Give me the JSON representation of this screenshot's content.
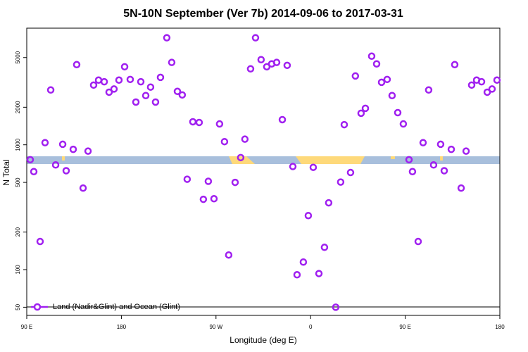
{
  "chart_data": {
    "type": "scatter",
    "title": "5N-10N September (Ver 7b)   2014-09-06 to 2017-03-31",
    "x_label": "Longitude (deg E)",
    "y_label": "N Total",
    "xlim": [
      90,
      540
    ],
    "xticks": [
      {
        "value": 90,
        "label": "90 E"
      },
      {
        "value": 180,
        "label": "180"
      },
      {
        "value": 270,
        "label": "90 W"
      },
      {
        "value": 360,
        "label": "0"
      },
      {
        "value": 450,
        "label": "90 E"
      },
      {
        "value": 540,
        "label": "180"
      }
    ],
    "ylim": [
      43,
      8600
    ],
    "yticks": [
      50,
      100,
      200,
      500,
      1000,
      2000,
      5000
    ],
    "log_y": true,
    "legend": "bottom-left",
    "series": [
      {
        "name": "Land (Nadir&Glint) and Ocean (Glint)",
        "color": "#a020f0",
        "x": [
          93.3,
          96.7,
          102.7,
          107.4,
          112.8,
          117.5,
          124.2,
          127.5,
          134.2,
          137.5,
          143.6,
          148.3,
          153.6,
          158.3,
          163.7,
          168.3,
          173.0,
          177.7,
          183.1,
          188.4,
          193.8,
          198.5,
          203.2,
          207.8,
          212.5,
          217.2,
          223.2,
          227.9,
          233.3,
          237.9,
          242.6,
          248.0,
          254.0,
          258.0,
          262.7,
          268.1,
          273.4,
          278.1,
          282.1,
          288.2,
          293.5,
          297.5,
          302.9,
          307.6,
          312.9,
          318.3,
          323.0,
          327.7,
          333.1,
          337.7,
          343.1,
          347.1,
          353.1,
          357.8,
          362.5,
          367.9,
          373.2,
          377.2,
          383.9,
          388.6,
          392.0,
          398.0,
          402.6,
          408.0,
          412.1,
          418.1,
          422.8,
          427.5,
          432.8,
          437.5,
          442.9,
          448.2,
          453.6,
          456.9,
          462.3,
          467.0,
          472.3,
          477.0,
          483.7,
          487.1,
          493.8,
          497.1,
          503.2,
          507.9,
          513.2,
          517.9,
          522.6,
          528.0,
          532.6,
          537.3
        ],
        "values": [
          760,
          610,
          168,
          1040,
          2750,
          690,
          1010,
          620,
          920,
          4390,
          450,
          890,
          3010,
          3300,
          3200,
          2640,
          2800,
          3300,
          4220,
          3340,
          2200,
          3200,
          2480,
          2900,
          2200,
          3470,
          7200,
          4570,
          2680,
          2510,
          530,
          1530,
          1510,
          366,
          510,
          370,
          1470,
          1060,
          131,
          500,
          790,
          1110,
          4060,
          7200,
          4810,
          4220,
          4450,
          4570,
          1590,
          4330,
          670,
          91,
          115,
          271,
          660,
          93,
          151,
          343,
          50,
          503,
          1450,
          600,
          3560,
          1790,
          1960,
          5130,
          4450,
          3170,
          3340,
          2480,
          1810,
          1470,
          760,
          610,
          168,
          1040,
          2750,
          690,
          1010,
          620,
          920,
          4390,
          450,
          890,
          3010,
          3300,
          3200,
          2640,
          2800,
          3300
        ]
      }
    ]
  }
}
